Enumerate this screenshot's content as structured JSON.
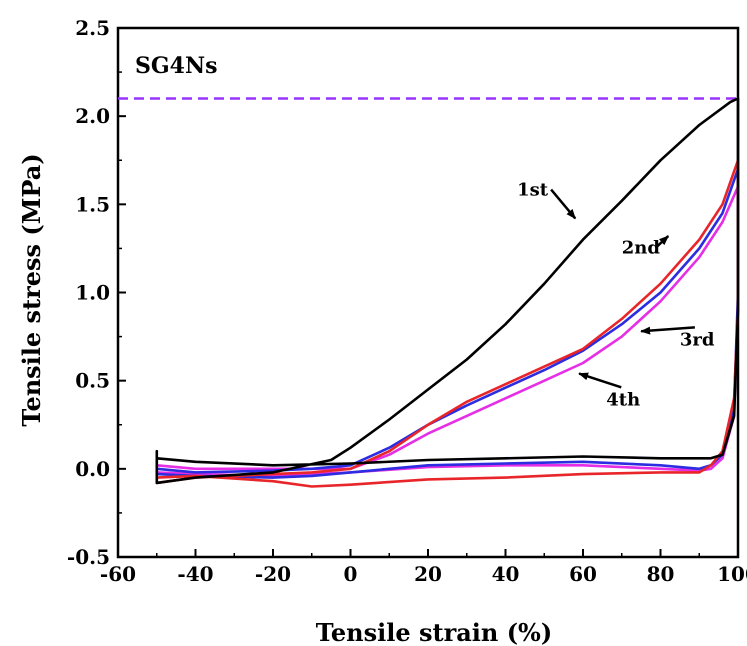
{
  "chart_data": {
    "type": "line",
    "title": "",
    "panel_label": "SG4Ns",
    "xlabel": "Tensile strain (%)",
    "ylabel": "Tensile stress (MPa)",
    "xlim": [
      -60,
      100
    ],
    "ylim": [
      -0.5,
      2.5
    ],
    "xticks": [
      -60,
      -40,
      -20,
      0,
      20,
      40,
      60,
      80,
      100
    ],
    "yticks": [
      -0.5,
      0.0,
      0.5,
      1.0,
      1.5,
      2.0,
      2.5
    ],
    "xtick_labels": [
      "-60",
      "-40",
      "-20",
      "0",
      "20",
      "40",
      "60",
      "80",
      "100"
    ],
    "ytick_labels": [
      "-0.5",
      "0.0",
      "0.5",
      "1.0",
      "1.5",
      "2.0",
      "2.5"
    ],
    "grid": false,
    "reference_line": {
      "y": 2.1,
      "style": "dashed",
      "color": "#9933ff"
    },
    "series": [
      {
        "name": "1st",
        "color": "#000000",
        "x": [
          -50,
          -50,
          -40,
          -20,
          -5,
          0,
          10,
          20,
          30,
          40,
          50,
          60,
          70,
          80,
          90,
          98,
          100,
          100,
          99,
          96,
          93,
          90,
          80,
          60,
          40,
          20,
          0,
          -20,
          -40,
          -50
        ],
        "y": [
          0.1,
          -0.08,
          -0.05,
          -0.02,
          0.05,
          0.12,
          0.28,
          0.45,
          0.62,
          0.82,
          1.05,
          1.3,
          1.52,
          1.75,
          1.95,
          2.08,
          2.1,
          0.9,
          0.3,
          0.08,
          0.06,
          0.06,
          0.06,
          0.07,
          0.06,
          0.05,
          0.03,
          0.02,
          0.04,
          0.06
        ]
      },
      {
        "name": "2nd",
        "color": "#e8262a",
        "x": [
          -50,
          -40,
          -20,
          -10,
          0,
          10,
          20,
          30,
          40,
          50,
          60,
          70,
          80,
          90,
          96,
          100,
          100,
          99,
          96,
          93,
          90,
          80,
          60,
          40,
          20,
          0,
          -10,
          -20,
          -40,
          -50
        ],
        "y": [
          -0.08,
          -0.05,
          -0.03,
          -0.02,
          0.0,
          0.1,
          0.25,
          0.38,
          0.48,
          0.58,
          0.68,
          0.85,
          1.05,
          1.3,
          1.5,
          1.75,
          0.9,
          0.4,
          0.1,
          0.02,
          -0.02,
          -0.02,
          -0.03,
          -0.05,
          -0.06,
          -0.09,
          -0.1,
          -0.07,
          -0.04,
          -0.05
        ]
      },
      {
        "name": "3rd",
        "color": "#2c2ce0",
        "x": [
          -50,
          -40,
          -20,
          -10,
          0,
          10,
          20,
          30,
          40,
          50,
          60,
          70,
          80,
          90,
          96,
          100,
          100,
          99,
          96,
          93,
          90,
          80,
          60,
          40,
          20,
          0,
          -10,
          -20,
          -40,
          -50
        ],
        "y": [
          0.0,
          -0.02,
          -0.01,
          0.0,
          0.02,
          0.12,
          0.25,
          0.36,
          0.46,
          0.56,
          0.67,
          0.82,
          1.0,
          1.25,
          1.45,
          1.7,
          1.0,
          0.35,
          0.08,
          0.02,
          0.0,
          0.02,
          0.04,
          0.03,
          0.02,
          -0.02,
          -0.04,
          -0.05,
          -0.04,
          -0.03
        ]
      },
      {
        "name": "4th",
        "color": "#e62ee6",
        "x": [
          -50,
          -40,
          -20,
          -10,
          0,
          10,
          20,
          30,
          40,
          50,
          60,
          70,
          80,
          90,
          96,
          100,
          100,
          99,
          96,
          93,
          90,
          80,
          60,
          40,
          20,
          0,
          -10,
          -20,
          -40,
          -50
        ],
        "y": [
          0.02,
          0.0,
          0.0,
          0.0,
          0.0,
          0.08,
          0.2,
          0.3,
          0.4,
          0.5,
          0.6,
          0.75,
          0.95,
          1.2,
          1.4,
          1.6,
          0.95,
          0.3,
          0.06,
          0.0,
          -0.01,
          0.0,
          0.02,
          0.02,
          0.01,
          -0.02,
          -0.03,
          -0.04,
          -0.03,
          -0.02
        ]
      }
    ],
    "annotations": [
      {
        "text": "1st",
        "x": 43,
        "y": 1.55,
        "target_x": 58,
        "target_y": 1.42
      },
      {
        "text": "2nd",
        "x": 70,
        "y": 1.22,
        "target_x": 82,
        "target_y": 1.32
      },
      {
        "text": "3rd",
        "x": 85,
        "y": 0.7,
        "target_x": 75,
        "target_y": 0.78
      },
      {
        "text": "4th",
        "x": 66,
        "y": 0.36,
        "target_x": 59,
        "target_y": 0.54
      }
    ]
  }
}
